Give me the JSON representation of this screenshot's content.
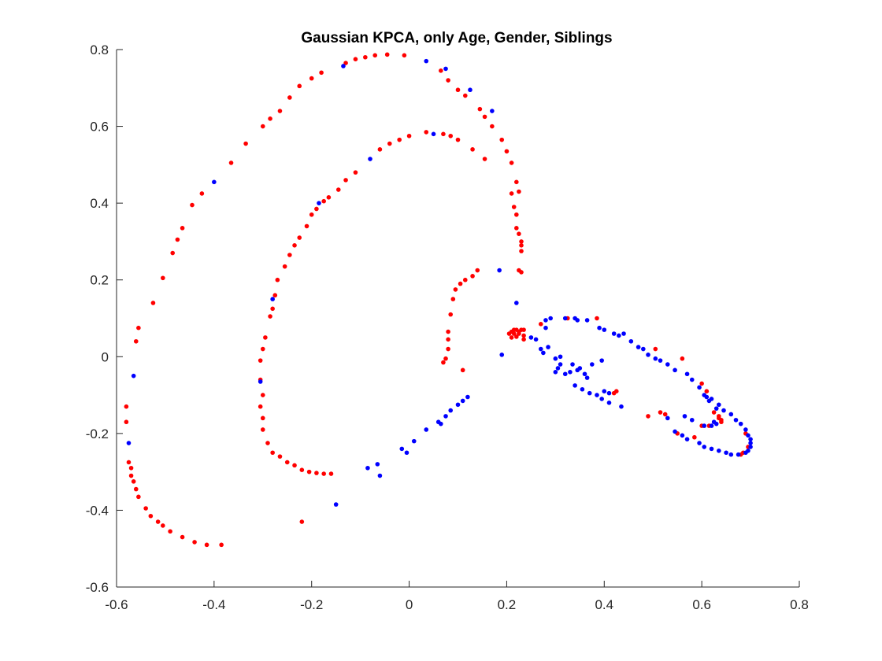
{
  "chart_data": {
    "type": "scatter",
    "title": "Gaussian KPCA, only Age, Gender, Siblings",
    "xlabel": "",
    "ylabel": "",
    "xlim": [
      -0.6,
      0.8
    ],
    "ylim": [
      -0.6,
      0.8
    ],
    "xticks": [
      "-0.6",
      "-0.4",
      "-0.2",
      "0",
      "0.2",
      "0.4",
      "0.6",
      "0.8"
    ],
    "yticks": [
      "-0.6",
      "-0.4",
      "-0.2",
      "0",
      "0.2",
      "0.4",
      "0.6",
      "0.8"
    ],
    "grid": false,
    "legend": "none",
    "colors": {
      "class_a": "#ff0000",
      "class_b": "#0000ff"
    },
    "series": [
      {
        "points": [
          [
            -0.385,
            -0.49
          ],
          [
            -0.415,
            -0.49
          ],
          [
            -0.44,
            -0.483
          ],
          [
            -0.465,
            -0.47
          ],
          [
            -0.49,
            -0.455
          ],
          [
            -0.505,
            -0.44
          ],
          [
            -0.515,
            -0.43
          ],
          [
            -0.53,
            -0.415
          ],
          [
            -0.54,
            -0.395
          ],
          [
            -0.555,
            -0.365
          ],
          [
            -0.56,
            -0.345
          ],
          [
            -0.565,
            -0.325
          ],
          [
            -0.57,
            -0.31
          ],
          [
            -0.57,
            -0.29
          ],
          [
            -0.575,
            -0.275
          ],
          [
            -0.58,
            -0.17
          ],
          [
            -0.58,
            -0.13
          ],
          [
            -0.56,
            0.04
          ],
          [
            -0.555,
            0.075
          ],
          [
            -0.525,
            0.14
          ],
          [
            -0.505,
            0.205
          ],
          [
            -0.485,
            0.27
          ],
          [
            -0.475,
            0.305
          ],
          [
            -0.465,
            0.335
          ],
          [
            -0.445,
            0.395
          ],
          [
            -0.425,
            0.425
          ],
          [
            -0.365,
            0.505
          ],
          [
            -0.335,
            0.555
          ],
          [
            -0.3,
            0.6
          ],
          [
            -0.285,
            0.62
          ],
          [
            -0.265,
            0.64
          ],
          [
            -0.245,
            0.675
          ],
          [
            -0.225,
            0.705
          ],
          [
            -0.2,
            0.725
          ],
          [
            -0.18,
            0.74
          ],
          [
            -0.13,
            0.765
          ],
          [
            -0.11,
            0.775
          ],
          [
            -0.09,
            0.78
          ],
          [
            -0.07,
            0.785
          ],
          [
            -0.045,
            0.787
          ],
          [
            -0.01,
            0.785
          ],
          [
            0.065,
            0.745
          ],
          [
            0.08,
            0.72
          ],
          [
            0.1,
            0.695
          ],
          [
            0.115,
            0.68
          ],
          [
            0.145,
            0.645
          ],
          [
            0.155,
            0.625
          ],
          [
            0.17,
            0.6
          ],
          [
            0.19,
            0.565
          ],
          [
            0.2,
            0.535
          ],
          [
            0.21,
            0.505
          ],
          [
            0.22,
            0.455
          ],
          [
            0.225,
            0.43
          ],
          [
            0.21,
            0.425
          ],
          [
            0.215,
            0.39
          ],
          [
            0.22,
            0.37
          ],
          [
            0.22,
            0.335
          ],
          [
            0.225,
            0.32
          ],
          [
            0.23,
            0.3
          ],
          [
            0.23,
            0.29
          ],
          [
            0.23,
            0.275
          ],
          [
            0.225,
            0.225
          ],
          [
            0.23,
            0.22
          ],
          [
            -0.16,
            -0.305
          ],
          [
            -0.175,
            -0.305
          ],
          [
            -0.19,
            -0.303
          ],
          [
            -0.205,
            -0.3
          ],
          [
            -0.22,
            -0.295
          ],
          [
            -0.235,
            -0.283
          ],
          [
            -0.25,
            -0.275
          ],
          [
            -0.265,
            -0.26
          ],
          [
            -0.28,
            -0.25
          ],
          [
            -0.29,
            -0.225
          ],
          [
            -0.3,
            -0.19
          ],
          [
            -0.3,
            -0.16
          ],
          [
            -0.305,
            -0.13
          ],
          [
            -0.3,
            -0.1
          ],
          [
            -0.305,
            -0.06
          ],
          [
            -0.305,
            -0.01
          ],
          [
            -0.3,
            0.02
          ],
          [
            -0.295,
            0.05
          ],
          [
            -0.285,
            0.105
          ],
          [
            -0.28,
            0.125
          ],
          [
            -0.275,
            0.16
          ],
          [
            -0.27,
            0.2
          ],
          [
            -0.255,
            0.235
          ],
          [
            -0.245,
            0.265
          ],
          [
            -0.235,
            0.29
          ],
          [
            -0.225,
            0.31
          ],
          [
            -0.21,
            0.34
          ],
          [
            -0.2,
            0.37
          ],
          [
            -0.19,
            0.385
          ],
          [
            -0.175,
            0.405
          ],
          [
            -0.165,
            0.415
          ],
          [
            -0.145,
            0.435
          ],
          [
            -0.13,
            0.46
          ],
          [
            -0.11,
            0.48
          ],
          [
            -0.06,
            0.54
          ],
          [
            -0.04,
            0.555
          ],
          [
            -0.02,
            0.565
          ],
          [
            0.0,
            0.575
          ],
          [
            0.035,
            0.585
          ],
          [
            0.07,
            0.58
          ],
          [
            0.085,
            0.575
          ],
          [
            0.1,
            0.565
          ],
          [
            0.13,
            0.54
          ],
          [
            0.155,
            0.515
          ],
          [
            -0.22,
            -0.43
          ],
          [
            0.07,
            -0.015
          ],
          [
            0.075,
            -0.005
          ],
          [
            0.08,
            0.02
          ],
          [
            0.08,
            0.045
          ],
          [
            0.08,
            0.065
          ],
          [
            0.085,
            0.11
          ],
          [
            0.09,
            0.15
          ],
          [
            0.095,
            0.175
          ],
          [
            0.105,
            0.19
          ],
          [
            0.115,
            0.2
          ],
          [
            0.13,
            0.21
          ],
          [
            0.14,
            0.225
          ],
          [
            0.11,
            -0.035
          ],
          [
            0.205,
            0.06
          ],
          [
            0.21,
            0.05
          ],
          [
            0.21,
            0.065
          ],
          [
            0.215,
            0.06
          ],
          [
            0.215,
            0.07
          ],
          [
            0.22,
            0.07
          ],
          [
            0.225,
            0.06
          ],
          [
            0.225,
            0.065
          ],
          [
            0.23,
            0.07
          ],
          [
            0.235,
            0.055
          ],
          [
            0.235,
            0.07
          ],
          [
            0.22,
            0.052
          ],
          [
            0.235,
            0.045
          ],
          [
            0.27,
            0.085
          ],
          [
            0.325,
            0.1
          ],
          [
            0.385,
            0.1
          ],
          [
            0.42,
            -0.095
          ],
          [
            0.425,
            -0.09
          ],
          [
            0.49,
            -0.155
          ],
          [
            0.515,
            -0.145
          ],
          [
            0.525,
            -0.15
          ],
          [
            0.505,
            0.02
          ],
          [
            0.56,
            -0.005
          ],
          [
            0.6,
            -0.07
          ],
          [
            0.61,
            -0.09
          ],
          [
            0.625,
            -0.145
          ],
          [
            0.635,
            -0.155
          ],
          [
            0.635,
            -0.16
          ],
          [
            0.64,
            -0.165
          ],
          [
            0.64,
            -0.17
          ],
          [
            0.6,
            -0.18
          ],
          [
            0.615,
            -0.18
          ],
          [
            0.55,
            -0.2
          ],
          [
            0.585,
            -0.21
          ],
          [
            0.68,
            -0.255
          ],
          [
            0.685,
            -0.25
          ],
          [
            0.695,
            -0.235
          ],
          [
            0.69,
            -0.2
          ]
        ]
      },
      {
        "points": [
          [
            -0.565,
            -0.05
          ],
          [
            -0.575,
            -0.225
          ],
          [
            -0.15,
            -0.385
          ],
          [
            -0.06,
            -0.31
          ],
          [
            -0.065,
            -0.28
          ],
          [
            -0.085,
            -0.29
          ],
          [
            -0.005,
            -0.25
          ],
          [
            -0.015,
            -0.24
          ],
          [
            0.01,
            -0.22
          ],
          [
            0.035,
            -0.19
          ],
          [
            0.06,
            -0.17
          ],
          [
            0.075,
            -0.155
          ],
          [
            0.085,
            -0.14
          ],
          [
            0.1,
            -0.125
          ],
          [
            0.11,
            -0.115
          ],
          [
            0.12,
            -0.105
          ],
          [
            0.065,
            -0.175
          ],
          [
            -0.305,
            -0.065
          ],
          [
            -0.28,
            0.15
          ],
          [
            -0.185,
            0.4
          ],
          [
            -0.4,
            0.455
          ],
          [
            -0.08,
            0.515
          ],
          [
            0.05,
            0.58
          ],
          [
            -0.135,
            0.757
          ],
          [
            0.035,
            0.77
          ],
          [
            0.075,
            0.75
          ],
          [
            0.125,
            0.695
          ],
          [
            0.17,
            0.64
          ],
          [
            0.185,
            0.225
          ],
          [
            0.22,
            0.14
          ],
          [
            0.19,
            0.005
          ],
          [
            0.25,
            0.05
          ],
          [
            0.26,
            0.045
          ],
          [
            0.28,
            0.075
          ],
          [
            0.28,
            0.095
          ],
          [
            0.29,
            0.1
          ],
          [
            0.27,
            0.02
          ],
          [
            0.275,
            0.01
          ],
          [
            0.285,
            0.025
          ],
          [
            0.32,
            0.1
          ],
          [
            0.34,
            0.1
          ],
          [
            0.345,
            0.095
          ],
          [
            0.365,
            0.095
          ],
          [
            0.39,
            0.075
          ],
          [
            0.4,
            0.07
          ],
          [
            0.42,
            0.06
          ],
          [
            0.43,
            0.055
          ],
          [
            0.44,
            0.06
          ],
          [
            0.455,
            0.04
          ],
          [
            0.47,
            0.025
          ],
          [
            0.48,
            0.02
          ],
          [
            0.49,
            0.005
          ],
          [
            0.505,
            -0.005
          ],
          [
            0.515,
            -0.01
          ],
          [
            0.53,
            -0.02
          ],
          [
            0.545,
            -0.035
          ],
          [
            0.57,
            -0.045
          ],
          [
            0.58,
            -0.06
          ],
          [
            0.595,
            -0.08
          ],
          [
            0.605,
            -0.1
          ],
          [
            0.62,
            -0.11
          ],
          [
            0.635,
            -0.125
          ],
          [
            0.645,
            -0.14
          ],
          [
            0.66,
            -0.15
          ],
          [
            0.67,
            -0.165
          ],
          [
            0.68,
            -0.175
          ],
          [
            0.69,
            -0.19
          ],
          [
            0.695,
            -0.205
          ],
          [
            0.7,
            -0.215
          ],
          [
            0.7,
            -0.225
          ],
          [
            0.7,
            -0.235
          ],
          [
            0.695,
            -0.245
          ],
          [
            0.69,
            -0.25
          ],
          [
            0.675,
            -0.255
          ],
          [
            0.66,
            -0.255
          ],
          [
            0.65,
            -0.25
          ],
          [
            0.635,
            -0.245
          ],
          [
            0.62,
            -0.24
          ],
          [
            0.605,
            -0.235
          ],
          [
            0.595,
            -0.225
          ],
          [
            0.57,
            -0.215
          ],
          [
            0.56,
            -0.205
          ],
          [
            0.545,
            -0.195
          ],
          [
            0.53,
            -0.16
          ],
          [
            0.565,
            -0.155
          ],
          [
            0.58,
            -0.165
          ],
          [
            0.605,
            -0.18
          ],
          [
            0.62,
            -0.18
          ],
          [
            0.63,
            -0.175
          ],
          [
            0.625,
            -0.17
          ],
          [
            0.63,
            -0.135
          ],
          [
            0.615,
            -0.115
          ],
          [
            0.61,
            -0.105
          ],
          [
            0.3,
            -0.005
          ],
          [
            0.305,
            -0.03
          ],
          [
            0.31,
            -0.02
          ],
          [
            0.32,
            -0.045
          ],
          [
            0.33,
            -0.04
          ],
          [
            0.335,
            -0.02
          ],
          [
            0.345,
            -0.035
          ],
          [
            0.35,
            -0.03
          ],
          [
            0.36,
            -0.045
          ],
          [
            0.365,
            -0.055
          ],
          [
            0.375,
            -0.02
          ],
          [
            0.395,
            -0.01
          ],
          [
            0.34,
            -0.075
          ],
          [
            0.355,
            -0.085
          ],
          [
            0.37,
            -0.095
          ],
          [
            0.385,
            -0.1
          ],
          [
            0.395,
            -0.11
          ],
          [
            0.41,
            -0.12
          ],
          [
            0.435,
            -0.13
          ],
          [
            0.4,
            -0.09
          ],
          [
            0.41,
            -0.095
          ],
          [
            0.3,
            -0.04
          ],
          [
            0.31,
            0.0
          ]
        ]
      }
    ]
  }
}
